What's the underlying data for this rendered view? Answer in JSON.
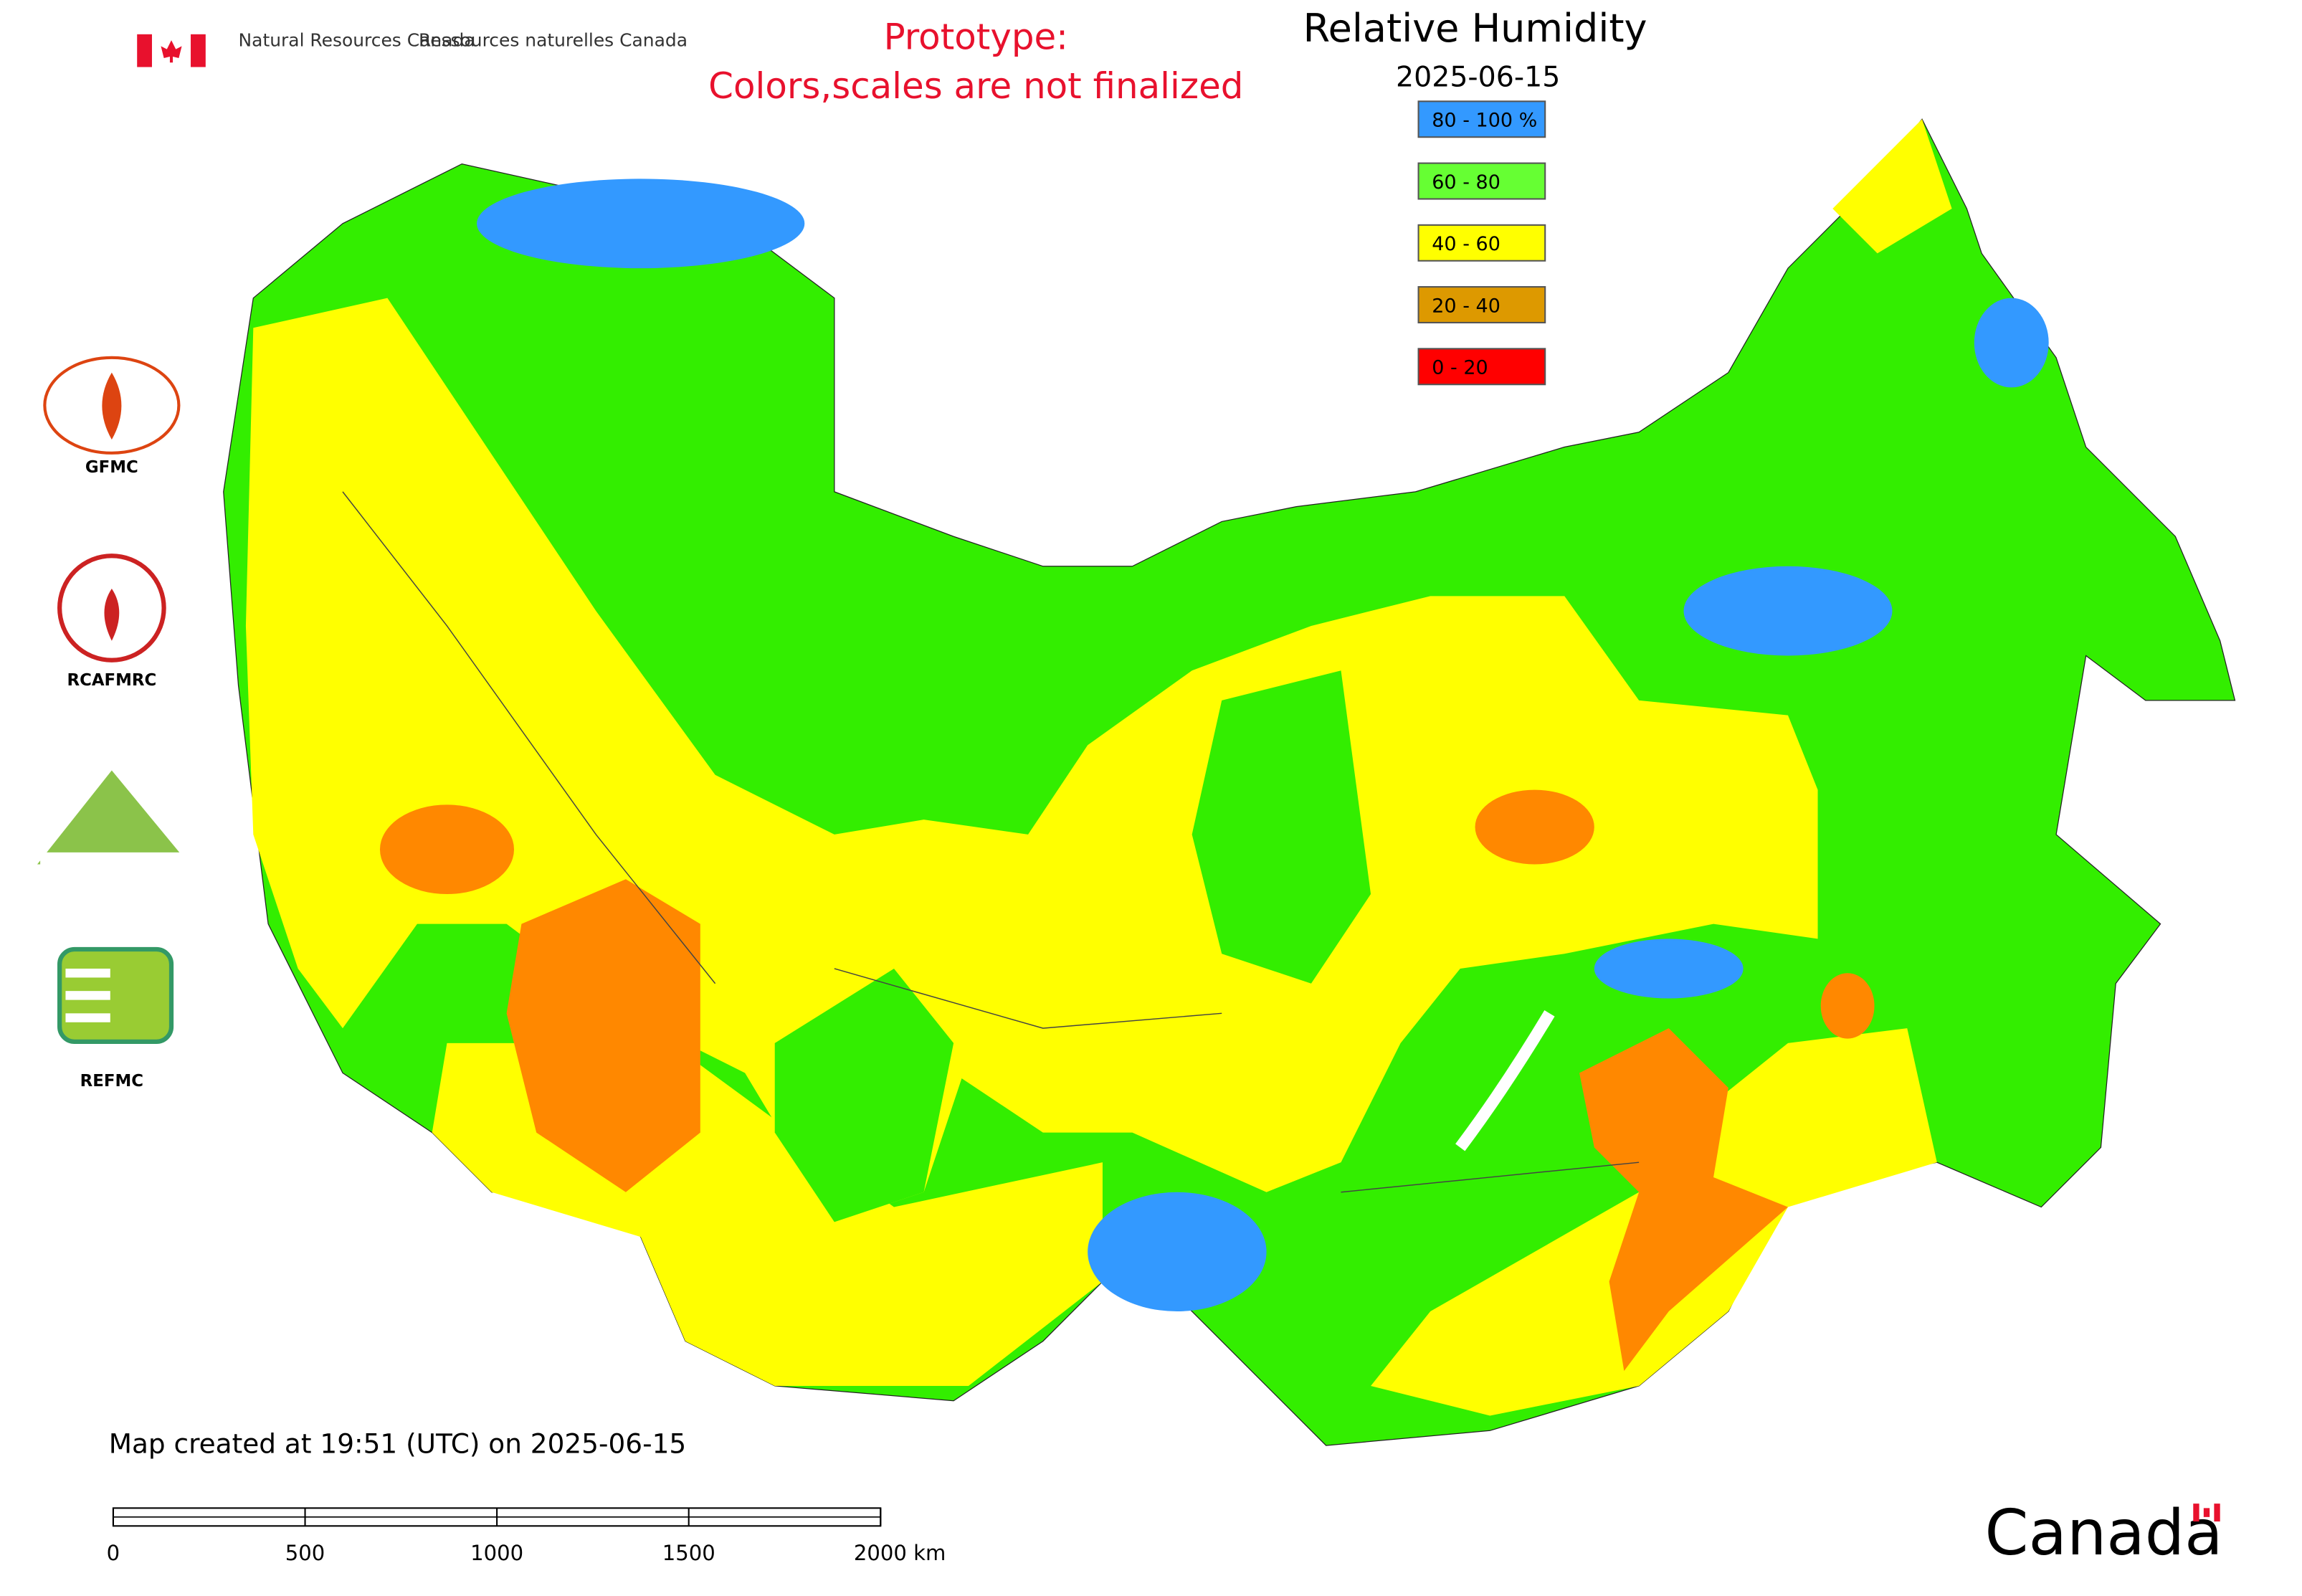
{
  "header": {
    "agency_en": "Natural Resources Canada",
    "agency_fr": "Ressources naturelles Canada",
    "prototype_line1": "Prototype:",
    "prototype_line2": "Colors,scales are not finalized",
    "title": "Relative Humidity",
    "date": "2025-06-15"
  },
  "legend": [
    {
      "label": "80 - 100 %",
      "color": "#3399ff"
    },
    {
      "label": "60 - 80",
      "color": "#66ff33"
    },
    {
      "label": "40 - 60",
      "color": "#ffff00"
    },
    {
      "label": "20 - 40",
      "color": "#dd9900"
    },
    {
      "label": "0 - 20",
      "color": "#ff0000"
    }
  ],
  "logos": [
    "GFMC",
    "RCAFMRC",
    "REFMC"
  ],
  "footer": "Map created at 19:51 (UTC) on 2025-06-15",
  "scale_bar": [
    "0",
    "500",
    "1000",
    "1500",
    "2000 km"
  ],
  "wordmark": "Canada"
}
